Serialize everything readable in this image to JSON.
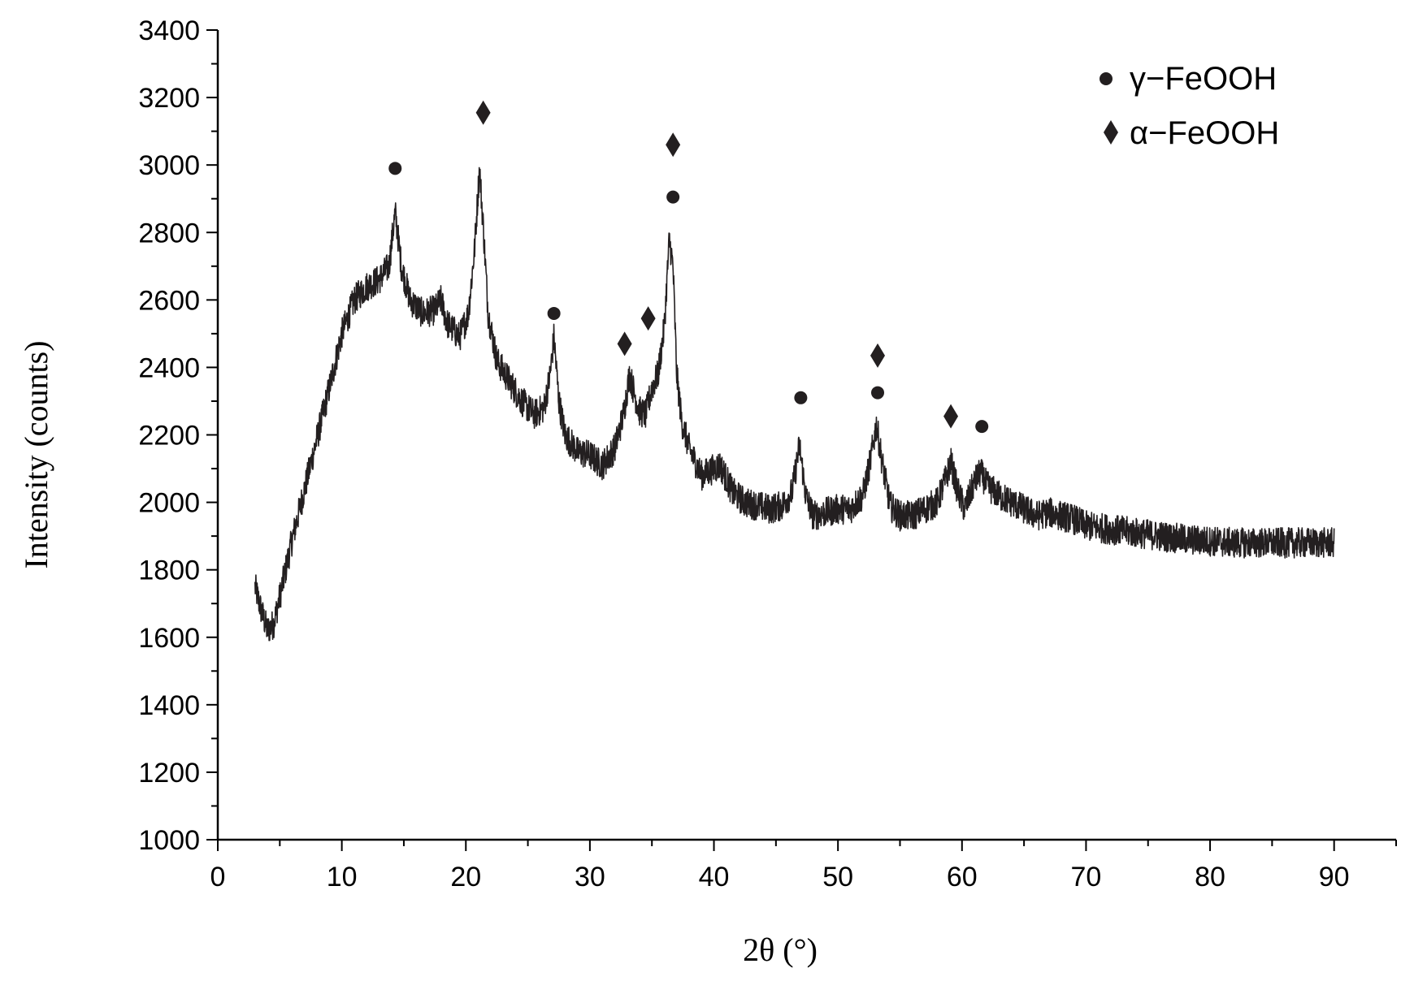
{
  "chart_data": {
    "type": "line",
    "title": "",
    "xlabel": "2θ (°)",
    "ylabel": "Intensity (counts)",
    "xlim": [
      0,
      95
    ],
    "ylim": [
      1000,
      3400
    ],
    "xticks": [
      0,
      10,
      20,
      30,
      40,
      50,
      60,
      70,
      80,
      90
    ],
    "xtick_labels": [
      "0",
      "10",
      "20",
      "30",
      "40",
      "50",
      "60",
      "70",
      "80",
      "90"
    ],
    "yticks": [
      1000,
      1200,
      1400,
      1600,
      1800,
      2000,
      2200,
      2400,
      2600,
      2800,
      3000,
      3200,
      3400
    ],
    "ytick_labels": [
      "1000",
      "1200",
      "1400",
      "1600",
      "1800",
      "2000",
      "2200",
      "2400",
      "2600",
      "2800",
      "3000",
      "3200",
      "3400"
    ],
    "grid": false,
    "legend_position": "top-right",
    "legend": [
      {
        "marker": "circle",
        "label": "γ−FeOOH"
      },
      {
        "marker": "diamond",
        "label": "α−FeOOH"
      }
    ],
    "series": [
      {
        "x": [
          3.0,
          3.5,
          4.0,
          4.5,
          5.0,
          6.0,
          7.0,
          8.0,
          9.0,
          10.0,
          11.0,
          12.0,
          13.0,
          13.8,
          14.3,
          14.8,
          15.5,
          16.5,
          17.5,
          18.0,
          18.5,
          19.5,
          20.2,
          20.7,
          21.1,
          21.4,
          21.8,
          22.5,
          23.5,
          24.5,
          25.5,
          26.3,
          26.8,
          27.1,
          27.5,
          28.0,
          29.0,
          30.0,
          31.0,
          32.0,
          32.7,
          33.2,
          33.6,
          34.0,
          34.5,
          35.0,
          35.5,
          36.0,
          36.4,
          36.7,
          37.0,
          37.4,
          38.0,
          39.0,
          40.0,
          40.5,
          41.5,
          42.5,
          43.5,
          44.5,
          45.5,
          46.3,
          46.9,
          47.4,
          48.0,
          49.0,
          50.0,
          51.0,
          52.0,
          52.6,
          53.1,
          53.6,
          54.2,
          55.0,
          56.0,
          57.0,
          58.0,
          58.7,
          59.1,
          59.6,
          60.2,
          61.0,
          61.5,
          62.0,
          63.0,
          64.0,
          65.0,
          66.0,
          67.0,
          68.0,
          69.0,
          70.0,
          72.0,
          74.0,
          76.0,
          78.0,
          80.0,
          82.0,
          84.0,
          86.0,
          88.0,
          90.0
        ],
        "y": [
          1750,
          1680,
          1620,
          1640,
          1720,
          1890,
          2040,
          2190,
          2340,
          2500,
          2600,
          2640,
          2660,
          2700,
          2860,
          2700,
          2600,
          2560,
          2570,
          2600,
          2530,
          2490,
          2560,
          2750,
          2990,
          2820,
          2560,
          2420,
          2360,
          2300,
          2260,
          2280,
          2380,
          2490,
          2300,
          2200,
          2150,
          2140,
          2110,
          2160,
          2260,
          2380,
          2320,
          2270,
          2260,
          2340,
          2380,
          2520,
          2780,
          2700,
          2380,
          2240,
          2160,
          2080,
          2100,
          2110,
          2030,
          2000,
          1990,
          1980,
          1990,
          2030,
          2170,
          2020,
          1960,
          1970,
          1980,
          1980,
          2020,
          2120,
          2230,
          2110,
          1990,
          1960,
          1960,
          1980,
          2000,
          2070,
          2120,
          2040,
          1980,
          2060,
          2090,
          2050,
          2020,
          2000,
          1980,
          1960,
          1970,
          1960,
          1950,
          1930,
          1920,
          1910,
          1900,
          1890,
          1885,
          1880,
          1880,
          1880,
          1880,
          1880
        ]
      }
    ],
    "annotations": [
      {
        "marker": "circle",
        "x": 14.3,
        "y": 2990
      },
      {
        "marker": "diamond",
        "x": 21.4,
        "y": 3155
      },
      {
        "marker": "circle",
        "x": 27.1,
        "y": 2560
      },
      {
        "marker": "diamond",
        "x": 32.8,
        "y": 2470
      },
      {
        "marker": "diamond",
        "x": 34.7,
        "y": 2545
      },
      {
        "marker": "diamond",
        "x": 36.7,
        "y": 3060
      },
      {
        "marker": "circle",
        "x": 36.7,
        "y": 2905
      },
      {
        "marker": "circle",
        "x": 47.0,
        "y": 2310
      },
      {
        "marker": "diamond",
        "x": 53.2,
        "y": 2435
      },
      {
        "marker": "circle",
        "x": 53.2,
        "y": 2325
      },
      {
        "marker": "diamond",
        "x": 59.1,
        "y": 2255
      },
      {
        "marker": "circle",
        "x": 61.6,
        "y": 2225
      }
    ]
  }
}
